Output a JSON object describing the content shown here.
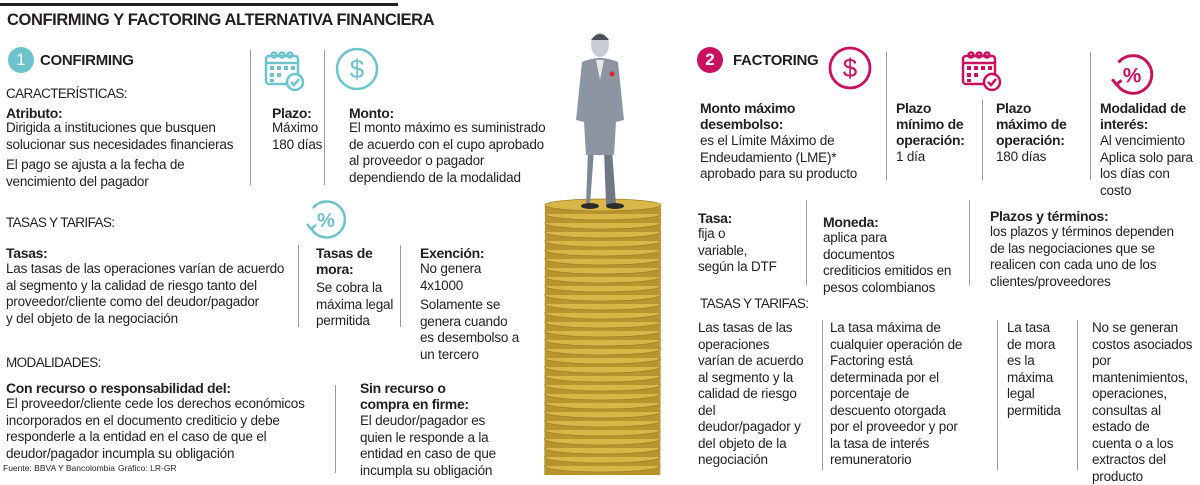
{
  "title": "CONFIRMING Y FACTORING ALTERNATIVA FINANCIERA",
  "colors": {
    "confirming": "#6cc3cc",
    "factoring": "#c9115f",
    "coins": "#d9b648"
  },
  "confirming": {
    "number": "1",
    "name": "CONFIRMING",
    "caracteristicas_heading": "CARACTERÍSTICAS:",
    "atributo": {
      "label": "Atributo:",
      "text1": "Dirigida a instituciones que busquen\nsolucionar sus necesidades financieras",
      "text2": "El pago se ajusta a la fecha de\nvencimiento del pagador"
    },
    "plazo": {
      "icon": "calendar-check-icon",
      "label": "Plazo:",
      "text": "Máximo\n180 días"
    },
    "monto": {
      "icon": "dollar-icon",
      "label": "Monto:",
      "text": "El monto máximo es suministrado\nde acuerdo con el cupo aprobado\nal proveedor o pagador\ndependiendo de la modalidad"
    },
    "tasas_heading": "TASAS Y TARIFAS:",
    "tasas_icon": "percent-cycle-icon",
    "tasas": {
      "label": "Tasas:",
      "text": "Las tasas de las operaciones varían de acuerdo\nal segmento y la calidad de riesgo tanto del\nproveedor/cliente como del deudor/pagador\ny del objeto de la negociación"
    },
    "mora": {
      "label": "Tasas de\nmora:",
      "text": "Se cobra la\nmáxima legal\npermitida"
    },
    "exencion": {
      "label": "Exención:",
      "text1": "No genera\n4x1000",
      "text2": "Solamente se\ngenera cuando\nes desembolso a\nun tercero"
    },
    "modalidades_heading": "MODALIDADES:",
    "con_recurso": {
      "label": "Con recurso o responsabilidad del:",
      "text": "El proveedor/cliente cede los derechos económicos\nincorporados en el documento crediticio y debe\nresponderle a la entidad en el caso de que el\ndeudor/pagador incumpla su obligación"
    },
    "sin_recurso": {
      "label": "Sin recurso o\ncompra en firme:",
      "text": "El deudor/pagador es\nquien le responde a la\nentidad en caso de que\nincumpla su obligación"
    }
  },
  "factoring": {
    "number": "2",
    "name": "FACTORING",
    "monto": {
      "icon": "dollar-icon",
      "label": "Monto máximo\ndesembolso:",
      "text": "es el Límite Máximo de\nEndeudamiento (LME)*\naprobado para su producto"
    },
    "plazo_min": {
      "icon": "calendar-check-icon",
      "label": "Plazo\nmínimo de\noperación:",
      "text": "1 día"
    },
    "plazo_max": {
      "label": "Plazo\nmáximo de\noperación:",
      "text": "180 días"
    },
    "modalidad": {
      "icon": "percent-cycle-icon",
      "label": "Modalidad de\ninterés:",
      "text": "Al vencimiento\nAplica solo para\nlos días con\ncosto"
    },
    "tasa": {
      "label": "Tasa:",
      "text": "fija o\nvariable,\nsegún la DTF"
    },
    "moneda": {
      "label": "Moneda:",
      "text": "aplica para\ndocumentos\ncrediticios emitidos en\npesos colombianos"
    },
    "plazos_terminos": {
      "label": "Plazos y términos:",
      "text": "los plazos y términos dependen\nde las negociaciones que se\nrealicen con cada uno de los\nclientes/proveedores"
    },
    "tasas_heading": "TASAS Y TARIFAS:",
    "tasas_cols": [
      "Las tasas de las\noperaciones\nvarían de acuerdo\nal segmento y la\ncalidad de riesgo\ndel\ndeudor/pagador y\ndel objeto de la\nnegociación",
      "La tasa máxima de\ncualquier operación de\nFactoring está\ndeterminada por el\nporcentaje de\ndescuento otorgada\npor el proveedor y por\nla tasa de interés\nremuneratorio",
      "La tasa\nde mora\nes la\nmáxima\nlegal\npermitida",
      "No se generan\ncostos asociados\npor\nmantenimientos,\noperaciones,\nconsultas al\nestado de\ncuenta o a los\nextractos del\nproducto"
    ]
  },
  "footer": {
    "source": "Fuente: BBVA Y Bancolombia",
    "graphic": "Gráfico: LR-GR"
  }
}
